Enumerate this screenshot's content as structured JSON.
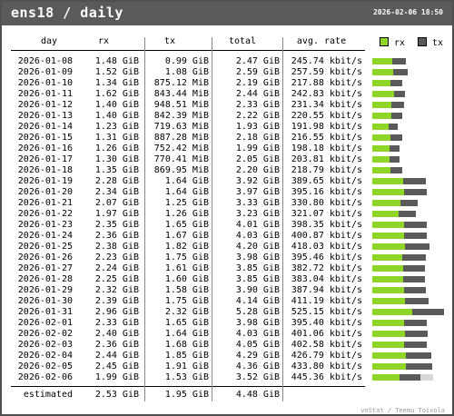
{
  "header": {
    "title": "ens18 / daily",
    "timestamp": "2026-02-06 18:50"
  },
  "columns": {
    "day": "day",
    "rx": "rx",
    "tx": "tx",
    "total": "total",
    "avg": "avg. rate"
  },
  "legend": {
    "rx": "rx",
    "tx": "tx"
  },
  "colors": {
    "rx": "#8ed628",
    "tx": "#5a5a5a",
    "estimate": "#d8d8d8",
    "header_bg": "#5a5a5a"
  },
  "rows": [
    {
      "day": "2026-01-08",
      "rx": "1.48 GiB",
      "tx": "0.99 GiB",
      "total": "2.47 GiB",
      "avg": "245.74 kbit/s"
    },
    {
      "day": "2026-01-09",
      "rx": "1.52 GiB",
      "tx": "1.08 GiB",
      "total": "2.59 GiB",
      "avg": "257.59 kbit/s"
    },
    {
      "day": "2026-01-10",
      "rx": "1.34 GiB",
      "tx": "875.12 MiB",
      "total": "2.19 GiB",
      "avg": "217.88 kbit/s"
    },
    {
      "day": "2026-01-11",
      "rx": "1.62 GiB",
      "tx": "843.44 MiB",
      "total": "2.44 GiB",
      "avg": "242.83 kbit/s"
    },
    {
      "day": "2026-01-12",
      "rx": "1.40 GiB",
      "tx": "948.51 MiB",
      "total": "2.33 GiB",
      "avg": "231.34 kbit/s"
    },
    {
      "day": "2026-01-13",
      "rx": "1.40 GiB",
      "tx": "842.39 MiB",
      "total": "2.22 GiB",
      "avg": "220.55 kbit/s"
    },
    {
      "day": "2026-01-14",
      "rx": "1.23 GiB",
      "tx": "719.63 MiB",
      "total": "1.93 GiB",
      "avg": "191.98 kbit/s"
    },
    {
      "day": "2026-01-15",
      "rx": "1.31 GiB",
      "tx": "887.28 MiB",
      "total": "2.18 GiB",
      "avg": "216.55 kbit/s"
    },
    {
      "day": "2026-01-16",
      "rx": "1.26 GiB",
      "tx": "752.42 MiB",
      "total": "1.99 GiB",
      "avg": "198.18 kbit/s"
    },
    {
      "day": "2026-01-17",
      "rx": "1.30 GiB",
      "tx": "770.41 MiB",
      "total": "2.05 GiB",
      "avg": "203.81 kbit/s"
    },
    {
      "day": "2026-01-18",
      "rx": "1.35 GiB",
      "tx": "869.95 MiB",
      "total": "2.20 GiB",
      "avg": "218.79 kbit/s"
    },
    {
      "day": "2026-01-19",
      "rx": "2.28 GiB",
      "tx": "1.64 GiB",
      "total": "3.92 GiB",
      "avg": "389.65 kbit/s"
    },
    {
      "day": "2026-01-20",
      "rx": "2.34 GiB",
      "tx": "1.64 GiB",
      "total": "3.97 GiB",
      "avg": "395.16 kbit/s"
    },
    {
      "day": "2026-01-21",
      "rx": "2.07 GiB",
      "tx": "1.25 GiB",
      "total": "3.33 GiB",
      "avg": "330.80 kbit/s"
    },
    {
      "day": "2026-01-22",
      "rx": "1.97 GiB",
      "tx": "1.26 GiB",
      "total": "3.23 GiB",
      "avg": "321.07 kbit/s"
    },
    {
      "day": "2026-01-23",
      "rx": "2.35 GiB",
      "tx": "1.65 GiB",
      "total": "4.01 GiB",
      "avg": "398.35 kbit/s"
    },
    {
      "day": "2026-01-24",
      "rx": "2.36 GiB",
      "tx": "1.67 GiB",
      "total": "4.03 GiB",
      "avg": "400.87 kbit/s"
    },
    {
      "day": "2026-01-25",
      "rx": "2.38 GiB",
      "tx": "1.82 GiB",
      "total": "4.20 GiB",
      "avg": "418.03 kbit/s"
    },
    {
      "day": "2026-01-26",
      "rx": "2.23 GiB",
      "tx": "1.75 GiB",
      "total": "3.98 GiB",
      "avg": "395.46 kbit/s"
    },
    {
      "day": "2026-01-27",
      "rx": "2.24 GiB",
      "tx": "1.61 GiB",
      "total": "3.85 GiB",
      "avg": "382.72 kbit/s"
    },
    {
      "day": "2026-01-28",
      "rx": "2.25 GiB",
      "tx": "1.60 GiB",
      "total": "3.85 GiB",
      "avg": "383.04 kbit/s"
    },
    {
      "day": "2026-01-29",
      "rx": "2.32 GiB",
      "tx": "1.58 GiB",
      "total": "3.90 GiB",
      "avg": "387.94 kbit/s"
    },
    {
      "day": "2026-01-30",
      "rx": "2.39 GiB",
      "tx": "1.75 GiB",
      "total": "4.14 GiB",
      "avg": "411.19 kbit/s"
    },
    {
      "day": "2026-01-31",
      "rx": "2.96 GiB",
      "tx": "2.32 GiB",
      "total": "5.28 GiB",
      "avg": "525.15 kbit/s"
    },
    {
      "day": "2026-02-01",
      "rx": "2.33 GiB",
      "tx": "1.65 GiB",
      "total": "3.98 GiB",
      "avg": "395.40 kbit/s"
    },
    {
      "day": "2026-02-02",
      "rx": "2.40 GiB",
      "tx": "1.64 GiB",
      "total": "4.03 GiB",
      "avg": "401.06 kbit/s"
    },
    {
      "day": "2026-02-03",
      "rx": "2.36 GiB",
      "tx": "1.68 GiB",
      "total": "4.05 GiB",
      "avg": "402.58 kbit/s"
    },
    {
      "day": "2026-02-04",
      "rx": "2.44 GiB",
      "tx": "1.85 GiB",
      "total": "4.29 GiB",
      "avg": "426.79 kbit/s"
    },
    {
      "day": "2026-02-05",
      "rx": "2.45 GiB",
      "tx": "1.91 GiB",
      "total": "4.36 GiB",
      "avg": "433.80 kbit/s"
    },
    {
      "day": "2026-02-06",
      "rx": "1.99 GiB",
      "tx": "1.53 GiB",
      "total": "3.52 GiB",
      "avg": "445.36 kbit/s"
    }
  ],
  "estimated": {
    "label": "estimated",
    "rx": "2.53 GiB",
    "tx": "1.95 GiB",
    "total": "4.48 GiB"
  },
  "footer": "vnStat / Teemu Toivola",
  "chart_data": {
    "type": "bar",
    "stacked": true,
    "orientation": "horizontal",
    "unit": "GiB",
    "categories": [
      "2026-01-08",
      "2026-01-09",
      "2026-01-10",
      "2026-01-11",
      "2026-01-12",
      "2026-01-13",
      "2026-01-14",
      "2026-01-15",
      "2026-01-16",
      "2026-01-17",
      "2026-01-18",
      "2026-01-19",
      "2026-01-20",
      "2026-01-21",
      "2026-01-22",
      "2026-01-23",
      "2026-01-24",
      "2026-01-25",
      "2026-01-26",
      "2026-01-27",
      "2026-01-28",
      "2026-01-29",
      "2026-01-30",
      "2026-01-31",
      "2026-02-01",
      "2026-02-02",
      "2026-02-03",
      "2026-02-04",
      "2026-02-05",
      "2026-02-06"
    ],
    "series": [
      {
        "name": "rx",
        "values": [
          1.48,
          1.52,
          1.34,
          1.62,
          1.4,
          1.4,
          1.23,
          1.31,
          1.26,
          1.3,
          1.35,
          2.28,
          2.34,
          2.07,
          1.97,
          2.35,
          2.36,
          2.38,
          2.23,
          2.24,
          2.25,
          2.32,
          2.39,
          2.96,
          2.33,
          2.4,
          2.36,
          2.44,
          2.45,
          1.99
        ]
      },
      {
        "name": "tx",
        "values": [
          0.99,
          1.08,
          0.85,
          0.82,
          0.93,
          0.82,
          0.7,
          0.87,
          0.73,
          0.75,
          0.85,
          1.64,
          1.64,
          1.25,
          1.26,
          1.65,
          1.67,
          1.82,
          1.75,
          1.61,
          1.6,
          1.58,
          1.75,
          2.32,
          1.65,
          1.64,
          1.68,
          1.85,
          1.91,
          1.53
        ]
      }
    ],
    "estimated_total_last_day": 4.48,
    "legend": "top-right"
  }
}
